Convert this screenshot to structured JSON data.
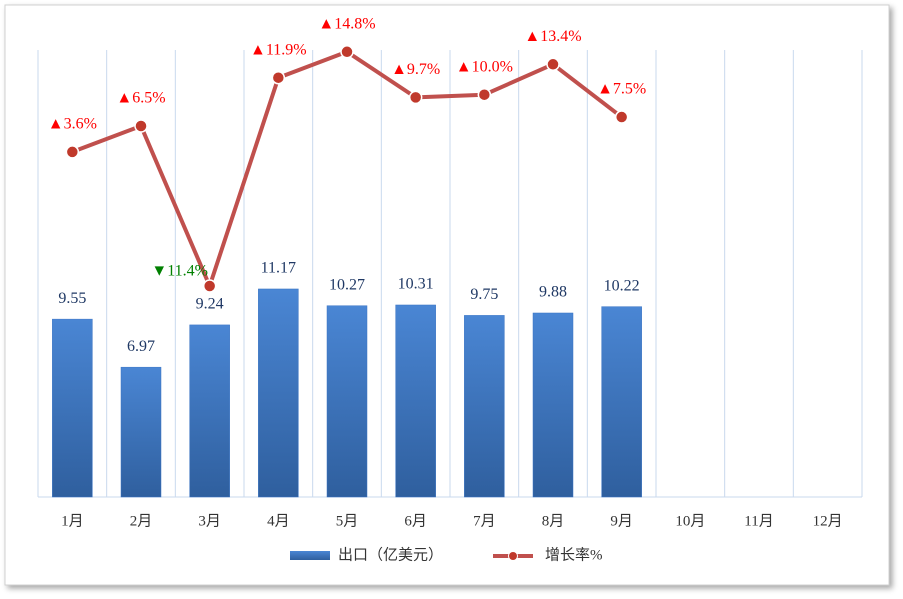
{
  "chart_data": {
    "type": "bar",
    "categories": [
      "1月",
      "2月",
      "3月",
      "4月",
      "5月",
      "6月",
      "7月",
      "8月",
      "9月",
      "10月",
      "11月",
      "12月"
    ],
    "ylim": [
      0,
      24
    ],
    "y2lim": [
      -35,
      15
    ],
    "series": [
      {
        "name": "出口（亿美元）",
        "type": "bar",
        "color": "#3a74c4",
        "values": [
          9.55,
          6.97,
          9.24,
          11.17,
          10.27,
          10.31,
          9.75,
          9.88,
          10.22,
          null,
          null,
          null
        ]
      },
      {
        "name": "增长率%",
        "type": "line",
        "axis": "y2",
        "color": "#c0504d",
        "values": [
          3.6,
          6.5,
          -11.4,
          11.9,
          14.8,
          9.7,
          10.0,
          13.4,
          7.5,
          null,
          null,
          null
        ],
        "value_labels": [
          "▲3.6%",
          "▲6.5%",
          "▼11.4%",
          "▲11.9%",
          "▲14.8%",
          "▲9.7%",
          "▲10.0%",
          "▲13.4%",
          "▲7.5%",
          null,
          null,
          null
        ],
        "up_color": "#ff0000",
        "down_color": "#008000"
      }
    ]
  }
}
